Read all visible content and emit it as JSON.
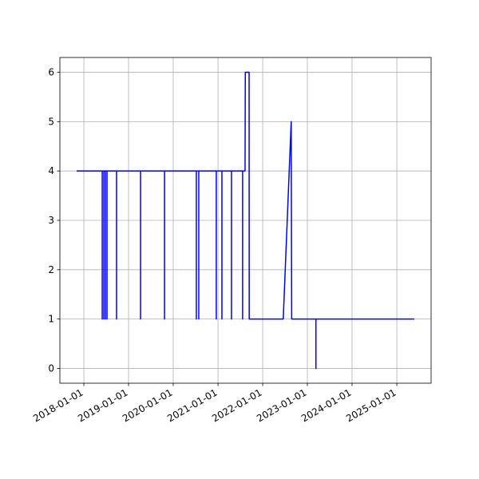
{
  "chart_data": {
    "type": "line",
    "x": [
      "2017-11-03",
      "2018-05-31",
      "2018-05-31",
      "2018-05-31",
      "2018-06-13",
      "2018-06-13",
      "2018-06-13",
      "2018-06-26",
      "2018-06-26",
      "2018-06-26",
      "2018-07-09",
      "2018-07-09",
      "2018-07-09",
      "2018-09-25",
      "2018-09-25",
      "2018-09-25",
      "2019-04-09",
      "2019-04-09",
      "2019-04-09",
      "2019-10-22",
      "2019-10-22",
      "2019-10-22",
      "2020-07-08",
      "2020-07-08",
      "2020-07-08",
      "2020-07-28",
      "2020-07-28",
      "2020-07-28",
      "2020-12-18",
      "2020-12-18",
      "2020-12-18",
      "2021-02-02",
      "2021-02-02",
      "2021-02-02",
      "2021-04-21",
      "2021-04-21",
      "2021-04-21",
      "2021-07-21",
      "2021-07-21",
      "2021-07-21",
      "2021-08-10",
      "2021-08-12",
      "2021-09-12",
      "2021-09-13",
      "2022-06-18",
      "2022-08-22",
      "2022-08-26",
      "2023-03-12",
      "2023-03-12",
      "2023-03-12",
      "2025-05-23"
    ],
    "series": [
      {
        "color": "#0000ff",
        "values": [
          4,
          4,
          1,
          4,
          4,
          1,
          4,
          4,
          1,
          4,
          4,
          1,
          4,
          4,
          1,
          4,
          4,
          1,
          4,
          4,
          1,
          4,
          4,
          1,
          4,
          4,
          1,
          4,
          4,
          1,
          4,
          4,
          1,
          4,
          4,
          1,
          4,
          4,
          1,
          4,
          4,
          6,
          6,
          1,
          1,
          5,
          1,
          1,
          0,
          1,
          1
        ]
      }
    ],
    "xlim": [
      "2017-06-19",
      "2025-10-08"
    ],
    "xticks": [
      "2018-01-01",
      "2019-01-01",
      "2020-01-01",
      "2021-01-01",
      "2022-01-01",
      "2023-01-01",
      "2024-01-01",
      "2025-01-01"
    ],
    "ylim": [
      -0.3,
      6.3
    ],
    "yticks": [
      0,
      1,
      2,
      3,
      4,
      5,
      6
    ],
    "grid": true
  }
}
